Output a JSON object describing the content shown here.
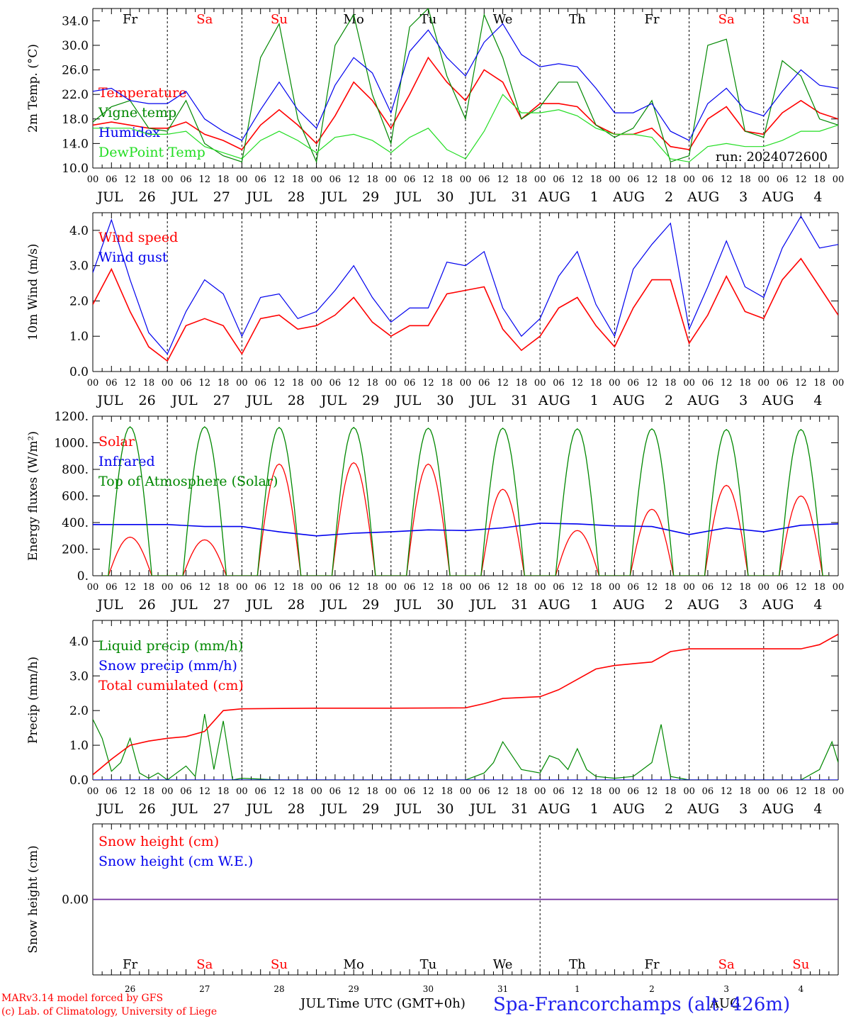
{
  "meta": {
    "model_credit": "MARv3.14 model forced by GFS",
    "lab_credit": "(c) Lab. of Climatology, University of Liege",
    "station": "Spa-Francorchamps (alt. 426m)",
    "run_label": "run: 2024072600",
    "time_axis_label": "Time UTC (GMT+0h)",
    "month_left": "JUL",
    "month_right": "AUG"
  },
  "colors": {
    "red": "#ff0000",
    "green": "#008800",
    "blue": "#0000ee",
    "lightgreen": "#22dd22",
    "purple": "#7030a0",
    "weekend": "#ff0000",
    "weekday": "#000000"
  },
  "x_axis": {
    "hour_ticks": [
      "00",
      "06",
      "12",
      "18"
    ],
    "final_tick": "00",
    "date_labels": [
      {
        "month": "JUL",
        "day": "26"
      },
      {
        "month": "JUL",
        "day": "27"
      },
      {
        "month": "JUL",
        "day": "28"
      },
      {
        "month": "JUL",
        "day": "29"
      },
      {
        "month": "JUL",
        "day": "30"
      },
      {
        "month": "JUL",
        "day": "31"
      },
      {
        "month": "AUG",
        "day": "1"
      },
      {
        "month": "AUG",
        "day": "2"
      },
      {
        "month": "AUG",
        "day": "3"
      },
      {
        "month": "AUG",
        "day": "4"
      }
    ],
    "weekdays": [
      "Fr",
      "Sa",
      "Su",
      "Mo",
      "Tu",
      "We",
      "Th",
      "Fr",
      "Sa",
      "Su"
    ],
    "weekend_flags": [
      false,
      true,
      true,
      false,
      false,
      false,
      false,
      false,
      true,
      true
    ],
    "bottom_day_numbers": [
      "26",
      "27",
      "28",
      "29",
      "30",
      "31",
      "1",
      "2",
      "3",
      "4"
    ]
  },
  "chart_data": [
    {
      "type": "line",
      "id": "temperature",
      "ylabel": "2m Temp. (°C)",
      "ylim": [
        10,
        36
      ],
      "yticks": [
        "10.0",
        "14.0",
        "18.0",
        "22.0",
        "26.0",
        "30.0",
        "34.0"
      ],
      "ytick_values": [
        10,
        14,
        18,
        22,
        26,
        30,
        34
      ],
      "x_unit": "hours since 2024-07-26 00 UTC",
      "x": [
        0,
        6,
        12,
        18,
        24,
        30,
        36,
        42,
        48,
        54,
        60,
        66,
        72,
        78,
        84,
        90,
        96,
        102,
        108,
        114,
        120,
        126,
        132,
        138,
        144,
        150,
        156,
        162,
        168,
        174,
        180,
        186,
        192,
        198,
        204,
        210,
        216,
        222,
        228,
        234,
        240
      ],
      "series": [
        {
          "name": "Temperature",
          "color": "red",
          "values": [
            17.0,
            17.5,
            17.0,
            16.5,
            16.5,
            17.5,
            15.5,
            14.5,
            13.0,
            17.0,
            19.5,
            17.0,
            14.0,
            18.5,
            24.0,
            21.0,
            16.5,
            22.0,
            28.0,
            24.0,
            21.0,
            26.0,
            24.0,
            18.0,
            20.5,
            20.5,
            20.0,
            17.0,
            15.5,
            15.5,
            16.5,
            13.5,
            13.0,
            18.0,
            20.0,
            16.0,
            15.5,
            19.0,
            21.0,
            19.0,
            18.0
          ]
        },
        {
          "name": "Vigne temp",
          "color": "green",
          "values": [
            17.5,
            20.0,
            21.0,
            16.5,
            16.0,
            21.0,
            14.0,
            12.0,
            11.0,
            28.0,
            33.5,
            18.0,
            11.0,
            30.0,
            35.0,
            22.0,
            14.0,
            33.0,
            36.0,
            25.0,
            18.0,
            35.0,
            28.0,
            18.0,
            20.0,
            24.0,
            24.0,
            17.0,
            15.0,
            16.5,
            21.0,
            11.0,
            12.0,
            30.0,
            31.0,
            16.0,
            15.0,
            27.5,
            25.0,
            18.0,
            17.0
          ]
        },
        {
          "name": "Humidex",
          "color": "blue",
          "values": [
            22.5,
            23.0,
            21.0,
            20.5,
            20.5,
            22.5,
            18.0,
            16.0,
            14.5,
            19.5,
            24.0,
            19.5,
            16.5,
            23.5,
            28.0,
            25.5,
            19.0,
            29.0,
            32.5,
            28.0,
            25.0,
            30.5,
            33.5,
            28.5,
            26.5,
            27.0,
            26.5,
            23.0,
            19.0,
            19.0,
            20.5,
            16.0,
            14.5,
            20.5,
            23.0,
            19.5,
            18.5,
            22.5,
            26.0,
            23.5,
            23.0
          ]
        },
        {
          "name": "DewPoint Temp",
          "color": "lightgreen",
          "values": [
            16.5,
            16.5,
            16.5,
            15.5,
            15.5,
            16.0,
            13.5,
            12.5,
            11.5,
            14.5,
            16.0,
            14.5,
            12.5,
            15.0,
            15.5,
            14.5,
            12.5,
            15.0,
            16.5,
            13.0,
            11.5,
            16.0,
            22.0,
            19.0,
            19.0,
            19.5,
            18.5,
            16.5,
            15.5,
            15.5,
            15.0,
            11.5,
            11.0,
            13.5,
            14.0,
            13.5,
            13.5,
            14.5,
            16.0,
            16.0,
            17.0
          ]
        }
      ]
    },
    {
      "type": "line",
      "id": "wind",
      "ylabel": "10m Wind (m/s)",
      "ylim": [
        0,
        4.5
      ],
      "yticks": [
        "0.0",
        "1.0",
        "2.0",
        "3.0",
        "4.0"
      ],
      "ytick_values": [
        0,
        1,
        2,
        3,
        4
      ],
      "x_unit": "hours since 2024-07-26 00 UTC",
      "x": [
        0,
        6,
        12,
        18,
        24,
        30,
        36,
        42,
        48,
        54,
        60,
        66,
        72,
        78,
        84,
        90,
        96,
        102,
        108,
        114,
        120,
        126,
        132,
        138,
        144,
        150,
        156,
        162,
        168,
        174,
        180,
        186,
        192,
        198,
        204,
        210,
        216,
        222,
        228,
        234,
        240
      ],
      "series": [
        {
          "name": "Wind speed",
          "color": "red",
          "values": [
            1.9,
            2.9,
            1.7,
            0.7,
            0.3,
            1.3,
            1.5,
            1.3,
            0.5,
            1.5,
            1.6,
            1.2,
            1.3,
            1.6,
            2.1,
            1.4,
            1.0,
            1.3,
            1.3,
            2.2,
            2.3,
            2.4,
            1.2,
            0.6,
            1.0,
            1.8,
            2.1,
            1.3,
            0.7,
            1.8,
            2.6,
            2.6,
            0.8,
            1.6,
            2.7,
            1.7,
            1.5,
            2.6,
            3.2,
            2.4,
            1.6
          ]
        },
        {
          "name": "Wind gust",
          "color": "blue",
          "values": [
            2.8,
            4.3,
            2.6,
            1.1,
            0.5,
            1.7,
            2.6,
            2.2,
            1.0,
            2.1,
            2.2,
            1.5,
            1.7,
            2.3,
            3.0,
            2.1,
            1.4,
            1.8,
            1.8,
            3.1,
            3.0,
            3.4,
            1.8,
            1.0,
            1.5,
            2.7,
            3.4,
            1.9,
            1.0,
            2.9,
            3.6,
            4.2,
            1.2,
            2.4,
            3.7,
            2.4,
            2.1,
            3.5,
            4.4,
            3.5,
            3.6
          ]
        }
      ]
    },
    {
      "type": "line",
      "id": "energy",
      "ylabel": "Energy fluxes (W/m²)",
      "ylim": [
        0,
        1200
      ],
      "yticks": [
        "0.",
        "200.",
        "400.",
        "600.",
        "800.",
        "1000.",
        "1200."
      ],
      "ytick_values": [
        0,
        200,
        400,
        600,
        800,
        1000,
        1200
      ],
      "x_unit": "hours since 2024-07-26 00 UTC",
      "daily_peak_hour": 12,
      "day_length_hours": 14,
      "series": [
        {
          "name": "Solar",
          "color": "red",
          "daily_peaks": [
            290,
            270,
            840,
            850,
            840,
            650,
            340,
            500,
            680,
            600
          ]
        },
        {
          "name": "Infrared",
          "color": "blue",
          "x": [
            0,
            12,
            24,
            36,
            48,
            60,
            72,
            84,
            96,
            108,
            120,
            132,
            144,
            156,
            168,
            180,
            192,
            204,
            216,
            228,
            240
          ],
          "values": [
            385,
            385,
            385,
            370,
            370,
            330,
            300,
            320,
            330,
            345,
            340,
            360,
            395,
            390,
            375,
            370,
            310,
            360,
            330,
            380,
            390
          ]
        },
        {
          "name": "Top of Atmosphere (Solar)",
          "color": "green",
          "daily_peaks": [
            1120,
            1120,
            1115,
            1115,
            1110,
            1110,
            1105,
            1105,
            1100,
            1100
          ]
        }
      ]
    },
    {
      "type": "line",
      "id": "precip",
      "ylabel": "Precip (mm/h)",
      "ylim": [
        0,
        4.6
      ],
      "yticks": [
        "0.0",
        "1.0",
        "2.0",
        "3.0",
        "4.0"
      ],
      "ytick_values": [
        0,
        1,
        2,
        3,
        4
      ],
      "x_unit": "hours since 2024-07-26 00 UTC",
      "series": [
        {
          "name": "Liquid precip (mm/h)",
          "color": "green",
          "x": [
            0,
            3,
            6,
            9,
            12,
            15,
            18,
            21,
            24,
            27,
            30,
            33,
            36,
            39,
            42,
            45,
            48,
            60,
            120,
            126,
            129,
            132,
            138,
            144,
            147,
            150,
            153,
            156,
            159,
            162,
            168,
            174,
            180,
            183,
            186,
            192,
            228,
            234,
            238,
            240
          ],
          "values": [
            1.75,
            1.2,
            0.25,
            0.5,
            1.2,
            0.2,
            0.05,
            0.2,
            0.0,
            0.2,
            0.4,
            0.1,
            1.9,
            0.3,
            1.7,
            0.0,
            0.05,
            0.0,
            0.0,
            0.2,
            0.5,
            1.1,
            0.3,
            0.2,
            0.7,
            0.6,
            0.3,
            0.9,
            0.3,
            0.1,
            0.05,
            0.1,
            0.5,
            1.6,
            0.1,
            0.0,
            0.0,
            0.3,
            1.1,
            0.5
          ]
        },
        {
          "name": "Snow precip (mm/h)",
          "color": "blue",
          "x": [
            0,
            240
          ],
          "values": [
            0.0,
            0.0
          ]
        },
        {
          "name": "Total cumulated (cm)",
          "color": "red",
          "x": [
            0,
            6,
            12,
            18,
            24,
            30,
            36,
            42,
            48,
            72,
            96,
            120,
            126,
            132,
            144,
            150,
            156,
            162,
            168,
            174,
            180,
            186,
            192,
            216,
            228,
            234,
            240
          ],
          "values": [
            0.15,
            0.6,
            1.0,
            1.12,
            1.2,
            1.25,
            1.4,
            2.0,
            2.05,
            2.07,
            2.07,
            2.08,
            2.2,
            2.35,
            2.4,
            2.6,
            2.9,
            3.2,
            3.3,
            3.35,
            3.4,
            3.7,
            3.78,
            3.78,
            3.78,
            3.9,
            4.2
          ]
        }
      ]
    },
    {
      "type": "line",
      "id": "snow",
      "ylabel": "Snow height (cm)",
      "ylim": [
        -1,
        1
      ],
      "yticks": [
        "0.00"
      ],
      "ytick_values": [
        0
      ],
      "x_unit": "hours since 2024-07-26 00 UTC",
      "x": [
        0,
        240
      ],
      "series": [
        {
          "name": "Snow height (cm)",
          "color": "red",
          "values": [
            0.0,
            0.0
          ]
        },
        {
          "name": "Snow height (cm W.E.)",
          "color": "blue",
          "values": [
            0.0,
            0.0
          ]
        }
      ]
    }
  ]
}
